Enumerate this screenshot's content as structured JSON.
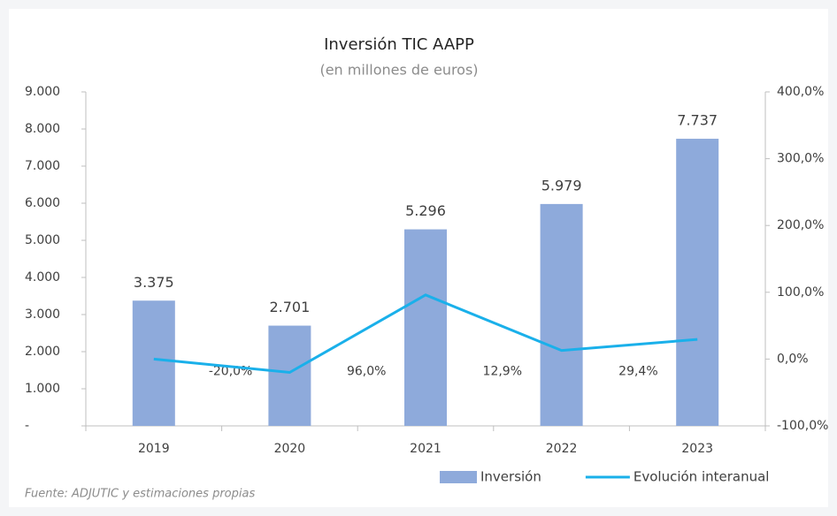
{
  "chart_data": {
    "type": "bar_line",
    "title": "Inversión TIC AAPP",
    "subtitle": "(en millones de euros)",
    "source": "Fuente: ADJUTIC y estimaciones propias",
    "categories": [
      "2019",
      "2020",
      "2021",
      "2022",
      "2023"
    ],
    "series": [
      {
        "name": "Inversión",
        "type": "bar",
        "color": "#8eaadb",
        "values": [
          3375,
          2701,
          5296,
          5979,
          7737
        ],
        "value_labels": [
          "3.375",
          "2.701",
          "5.296",
          "5.979",
          "7.737"
        ]
      },
      {
        "name": "Evolución interanual",
        "type": "line",
        "axis": "y2",
        "color": "#1ab0ea",
        "values": [
          0,
          -20,
          96,
          12.9,
          29.4
        ],
        "value_labels": [
          null,
          "-20,0%",
          "96,0%",
          "12,9%",
          "29,4%"
        ]
      }
    ],
    "ylim": [
      0,
      9000
    ],
    "yticks": [
      {
        "value": 0,
        "label": "-"
      },
      {
        "value": 1000,
        "label": "1.000"
      },
      {
        "value": 2000,
        "label": "2.000"
      },
      {
        "value": 3000,
        "label": "3.000"
      },
      {
        "value": 4000,
        "label": "4.000"
      },
      {
        "value": 5000,
        "label": "5.000"
      },
      {
        "value": 6000,
        "label": "6.000"
      },
      {
        "value": 7000,
        "label": "7.000"
      },
      {
        "value": 8000,
        "label": "8.000"
      },
      {
        "value": 9000,
        "label": "9.000"
      }
    ],
    "y2lim": [
      -100,
      400
    ],
    "y2ticks": [
      {
        "value": -100,
        "label": "-100,0%"
      },
      {
        "value": 0,
        "label": "0,0%"
      },
      {
        "value": 100,
        "label": "100,0%"
      },
      {
        "value": 200,
        "label": "200,0%"
      },
      {
        "value": 300,
        "label": "300,0%"
      },
      {
        "value": 400,
        "label": "400,0%"
      }
    ],
    "legend": "bottom-right"
  }
}
